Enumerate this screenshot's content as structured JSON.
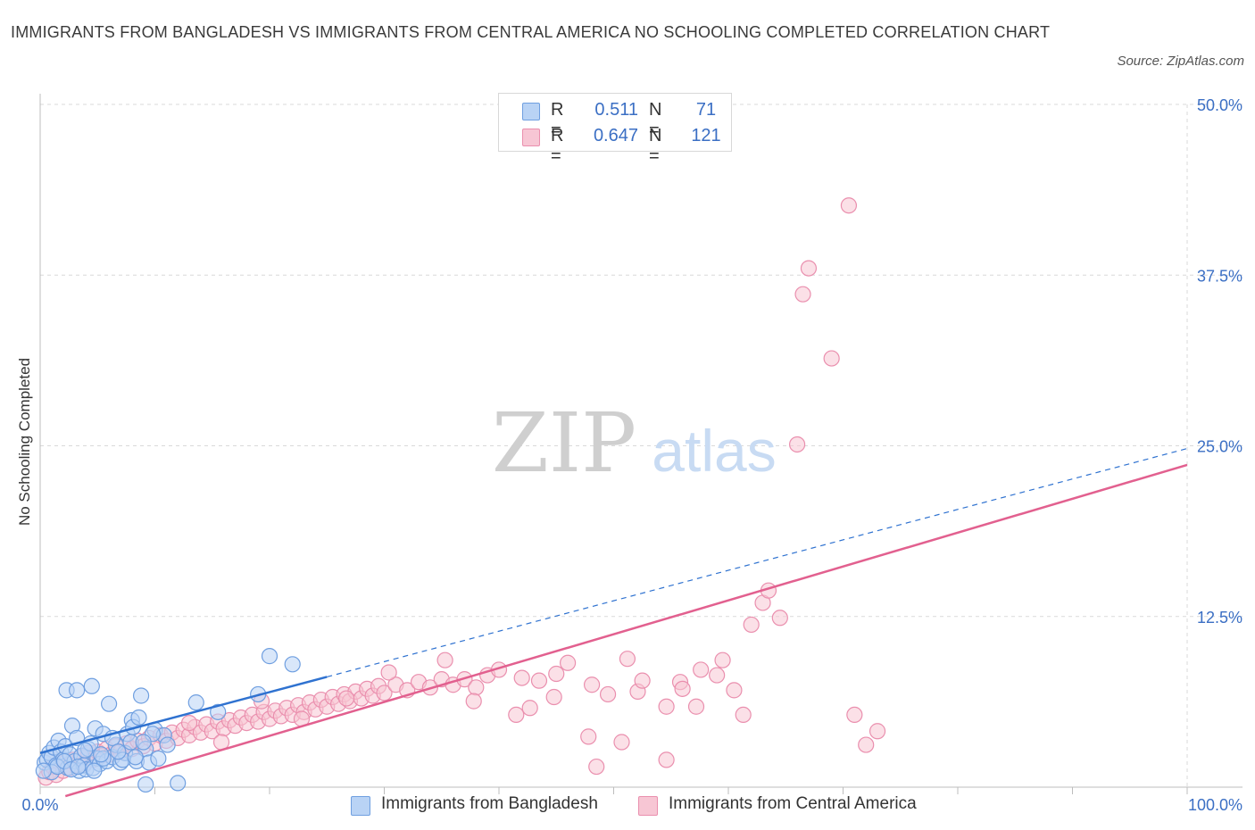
{
  "title": "IMMIGRANTS FROM BANGLADESH VS IMMIGRANTS FROM CENTRAL AMERICA NO SCHOOLING COMPLETED CORRELATION CHART",
  "source": "Source: ZipAtlas.com",
  "watermark": {
    "zip": "ZIP",
    "atlas": "atlas"
  },
  "colors": {
    "blue_fill": "#b9d3f5",
    "blue_stroke": "#6f9fe0",
    "blue_line": "#2f72d0",
    "pink_fill": "#f7c6d4",
    "pink_stroke": "#ea8fae",
    "pink_line": "#e2608f",
    "grid": "#d9d9d9",
    "axis_label": "#3b6fc4"
  },
  "legend": {
    "rows": [
      {
        "r_label": "R =",
        "r_value": "0.511",
        "n_label": "N =",
        "n_value": "71"
      },
      {
        "r_label": "R =",
        "r_value": "0.647",
        "n_label": "N =",
        "n_value": "121"
      }
    ]
  },
  "chart_data": {
    "type": "scatter",
    "title": "IMMIGRANTS FROM BANGLADESH VS IMMIGRANTS FROM CENTRAL AMERICA NO SCHOOLING COMPLETED CORRELATION CHART",
    "xlabel": "",
    "ylabel": "No Schooling Completed",
    "xlim": [
      0,
      100
    ],
    "ylim": [
      0,
      50
    ],
    "x_tick_labels": [
      "0.0%",
      "100.0%"
    ],
    "y_ticks": [
      12.5,
      25,
      37.5,
      50
    ],
    "y_tick_labels": [
      "12.5%",
      "25.0%",
      "37.5%",
      "50.0%"
    ],
    "grid": true,
    "legend_position": "top-center",
    "series": [
      {
        "name": "Immigrants from Bangladesh",
        "color": "#6f9fe0",
        "trend": {
          "x0": 0,
          "y0": 2.5,
          "x1": 100,
          "y1": 24.8,
          "solid_until_x": 25
        },
        "points": [
          [
            0.4,
            1.8
          ],
          [
            0.6,
            2.0
          ],
          [
            0.8,
            2.5
          ],
          [
            1.0,
            2.2
          ],
          [
            1.2,
            2.9
          ],
          [
            1.4,
            1.6
          ],
          [
            1.6,
            3.4
          ],
          [
            1.8,
            2.6
          ],
          [
            2.0,
            2.0
          ],
          [
            2.2,
            3.0
          ],
          [
            2.4,
            1.4
          ],
          [
            2.6,
            2.4
          ],
          [
            2.8,
            4.5
          ],
          [
            3.0,
            1.9
          ],
          [
            3.2,
            3.6
          ],
          [
            3.4,
            1.2
          ],
          [
            3.6,
            2.3
          ],
          [
            3.8,
            1.6
          ],
          [
            4.0,
            1.3
          ],
          [
            4.2,
            2.8
          ],
          [
            4.4,
            3.2
          ],
          [
            4.6,
            1.4
          ],
          [
            4.8,
            4.3
          ],
          [
            5.0,
            2.1
          ],
          [
            5.2,
            1.7
          ],
          [
            5.5,
            3.9
          ],
          [
            5.8,
            1.9
          ],
          [
            6.0,
            6.1
          ],
          [
            6.3,
            2.2
          ],
          [
            6.6,
            3.1
          ],
          [
            7.0,
            1.8
          ],
          [
            7.4,
            2.5
          ],
          [
            7.6,
            3.9
          ],
          [
            8.0,
            4.9
          ],
          [
            8.4,
            1.9
          ],
          [
            8.8,
            6.7
          ],
          [
            9.2,
            2.8
          ],
          [
            9.5,
            1.8
          ],
          [
            10.0,
            4.2
          ],
          [
            10.3,
            2.1
          ],
          [
            10.8,
            3.8
          ],
          [
            2.3,
            7.1
          ],
          [
            3.2,
            7.1
          ],
          [
            4.5,
            7.4
          ],
          [
            5.5,
            2.1
          ],
          [
            6.3,
            3.6
          ],
          [
            7.2,
            2.0
          ],
          [
            8.1,
            4.4
          ],
          [
            8.6,
            5.1
          ],
          [
            9.2,
            0.2
          ],
          [
            9.8,
            3.9
          ],
          [
            11.1,
            3.1
          ],
          [
            12.0,
            0.3
          ],
          [
            13.6,
            6.2
          ],
          [
            15.5,
            5.5
          ],
          [
            19.0,
            6.8
          ],
          [
            20.0,
            9.6
          ],
          [
            22.0,
            9.0
          ],
          [
            1.0,
            1.1
          ],
          [
            1.5,
            1.5
          ],
          [
            2.1,
            1.9
          ],
          [
            2.7,
            1.3
          ],
          [
            3.3,
            1.5
          ],
          [
            3.9,
            2.7
          ],
          [
            4.7,
            1.2
          ],
          [
            5.3,
            2.4
          ],
          [
            6.8,
            2.6
          ],
          [
            7.9,
            3.3
          ],
          [
            8.3,
            2.2
          ],
          [
            9.0,
            3.3
          ],
          [
            0.3,
            1.2
          ]
        ]
      },
      {
        "name": "Immigrants from Central America",
        "color": "#ea8fae",
        "trend": {
          "x0": 0,
          "y0": -1.2,
          "x1": 100,
          "y1": 23.6
        },
        "points": [
          [
            0.5,
            0.7
          ],
          [
            0.8,
            1.1
          ],
          [
            1.1,
            1.5
          ],
          [
            1.4,
            0.9
          ],
          [
            1.7,
            1.8
          ],
          [
            2.0,
            1.2
          ],
          [
            2.3,
            1.9
          ],
          [
            2.6,
            1.4
          ],
          [
            2.9,
            2.0
          ],
          [
            3.2,
            1.6
          ],
          [
            3.5,
            2.2
          ],
          [
            3.8,
            1.7
          ],
          [
            4.2,
            2.5
          ],
          [
            4.6,
            2.0
          ],
          [
            5.0,
            2.6
          ],
          [
            5.4,
            2.3
          ],
          [
            5.8,
            2.8
          ],
          [
            6.2,
            2.4
          ],
          [
            6.6,
            3.0
          ],
          [
            7.0,
            2.6
          ],
          [
            7.5,
            3.2
          ],
          [
            8.0,
            2.8
          ],
          [
            8.5,
            3.4
          ],
          [
            9.0,
            3.0
          ],
          [
            9.5,
            3.6
          ],
          [
            10.0,
            3.2
          ],
          [
            10.5,
            3.8
          ],
          [
            11.0,
            3.4
          ],
          [
            11.5,
            4.0
          ],
          [
            12.0,
            3.6
          ],
          [
            12.5,
            4.2
          ],
          [
            13.0,
            3.8
          ],
          [
            13.5,
            4.4
          ],
          [
            14.0,
            4.0
          ],
          [
            14.5,
            4.6
          ],
          [
            15.0,
            4.1
          ],
          [
            15.5,
            4.8
          ],
          [
            16.0,
            4.3
          ],
          [
            16.5,
            4.9
          ],
          [
            17.0,
            4.5
          ],
          [
            17.5,
            5.1
          ],
          [
            18.0,
            4.7
          ],
          [
            18.5,
            5.3
          ],
          [
            19.0,
            4.8
          ],
          [
            19.5,
            5.5
          ],
          [
            20.0,
            5.0
          ],
          [
            20.5,
            5.6
          ],
          [
            21.0,
            5.2
          ],
          [
            21.5,
            5.8
          ],
          [
            22.0,
            5.3
          ],
          [
            22.5,
            6.0
          ],
          [
            23.0,
            5.5
          ],
          [
            23.5,
            6.2
          ],
          [
            24.0,
            5.7
          ],
          [
            24.5,
            6.4
          ],
          [
            25.0,
            5.9
          ],
          [
            25.5,
            6.6
          ],
          [
            26.0,
            6.1
          ],
          [
            26.5,
            6.8
          ],
          [
            27.0,
            6.3
          ],
          [
            27.5,
            7.0
          ],
          [
            28.0,
            6.5
          ],
          [
            28.5,
            7.2
          ],
          [
            29.0,
            6.7
          ],
          [
            29.5,
            7.4
          ],
          [
            30.0,
            6.9
          ],
          [
            31.0,
            7.5
          ],
          [
            32.0,
            7.1
          ],
          [
            33.0,
            7.7
          ],
          [
            34.0,
            7.3
          ],
          [
            35.0,
            7.9
          ],
          [
            36.0,
            7.5
          ],
          [
            37.0,
            7.9
          ],
          [
            38.0,
            7.3
          ],
          [
            39.0,
            8.2
          ],
          [
            40.0,
            8.6
          ],
          [
            42.0,
            8.0
          ],
          [
            43.5,
            7.8
          ],
          [
            45.0,
            8.3
          ],
          [
            46.0,
            9.1
          ],
          [
            13.0,
            4.7
          ],
          [
            15.8,
            3.3
          ],
          [
            19.3,
            6.3
          ],
          [
            22.8,
            5.0
          ],
          [
            26.7,
            6.5
          ],
          [
            30.4,
            8.4
          ],
          [
            35.3,
            9.3
          ],
          [
            37.8,
            6.3
          ],
          [
            41.5,
            5.3
          ],
          [
            42.7,
            5.8
          ],
          [
            44.8,
            6.6
          ],
          [
            47.8,
            3.7
          ],
          [
            48.1,
            7.5
          ],
          [
            49.5,
            6.8
          ],
          [
            50.7,
            3.3
          ],
          [
            51.2,
            9.4
          ],
          [
            52.1,
            7.0
          ],
          [
            52.5,
            7.8
          ],
          [
            54.6,
            5.9
          ],
          [
            54.6,
            2.0
          ],
          [
            55.8,
            7.7
          ],
          [
            56.0,
            7.2
          ],
          [
            57.2,
            5.9
          ],
          [
            57.6,
            8.6
          ],
          [
            59.0,
            8.2
          ],
          [
            59.5,
            9.3
          ],
          [
            60.5,
            7.1
          ],
          [
            61.3,
            5.3
          ],
          [
            62.0,
            11.9
          ],
          [
            63.0,
            13.5
          ],
          [
            63.5,
            14.4
          ],
          [
            64.5,
            12.4
          ],
          [
            66.0,
            25.1
          ],
          [
            66.5,
            36.1
          ],
          [
            67.0,
            38.0
          ],
          [
            69.0,
            31.4
          ],
          [
            70.5,
            42.6
          ],
          [
            71.0,
            5.3
          ],
          [
            72.0,
            3.1
          ],
          [
            73.0,
            4.1
          ],
          [
            48.5,
            1.5
          ]
        ]
      }
    ]
  },
  "legend_bottom": [
    {
      "label": "Immigrants from Bangladesh"
    },
    {
      "label": "Immigrants from Central America"
    }
  ]
}
